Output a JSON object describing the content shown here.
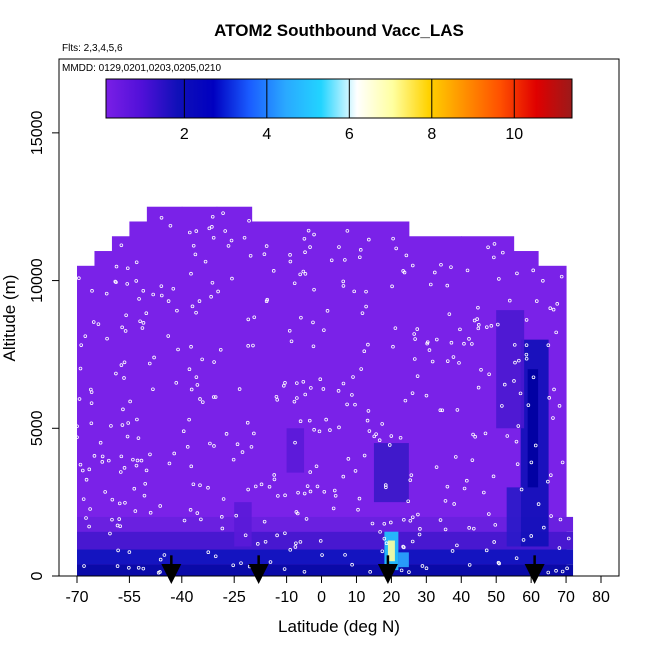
{
  "chart_data": {
    "type": "heatmap",
    "title": "ATOM2 Southbound Vacc_LAS",
    "flights_label": "Flts: 2,3,4,5,6",
    "dates_label": "MMDD: 0129,0201,0203,0205,0210",
    "xlabel": "Latitude (deg N)",
    "ylabel": "Altitude (m)",
    "xlim": [
      -70,
      80
    ],
    "ylim": [
      0,
      17500
    ],
    "x_ticks": [
      -70,
      -55,
      -40,
      -25,
      -10,
      0,
      10,
      20,
      30,
      40,
      50,
      60,
      70,
      80
    ],
    "y_ticks": [
      0,
      5000,
      10000,
      15000
    ],
    "colorbar": {
      "range": [
        0.1,
        11.4
      ],
      "ticks": [
        2,
        4,
        6,
        8,
        10
      ],
      "colors": [
        "#7a1fe6",
        "#5010d8",
        "#1010b8",
        "#0000c0",
        "#1a5cff",
        "#2aa8ff",
        "#22d4ff",
        "#ffffff",
        "#ffffa0",
        "#ffd200",
        "#ff9000",
        "#ff5000",
        "#e00000",
        "#9b1a1a"
      ]
    },
    "field_background_color": "#7a22e8",
    "field_extent_altitude_by_latitude": [
      {
        "x": -70,
        "top": 10500
      },
      {
        "x": -65,
        "top": 11000
      },
      {
        "x": -60,
        "top": 11500
      },
      {
        "x": -55,
        "top": 12000
      },
      {
        "x": -50,
        "top": 12500
      },
      {
        "x": -40,
        "top": 12500
      },
      {
        "x": -30,
        "top": 12500
      },
      {
        "x": -20,
        "top": 12000
      },
      {
        "x": -10,
        "top": 12000
      },
      {
        "x": 0,
        "top": 12000
      },
      {
        "x": 10,
        "top": 12000
      },
      {
        "x": 25,
        "top": 11500
      },
      {
        "x": 40,
        "top": 11500
      },
      {
        "x": 55,
        "top": 11000
      },
      {
        "x": 62,
        "top": 10500
      },
      {
        "x": 70,
        "top": 10500
      }
    ],
    "low_altitude_layers": [
      {
        "x0": -70,
        "x1": 72,
        "y0": 0,
        "y1": 400,
        "color": "#0a0aa8"
      },
      {
        "x0": -70,
        "x1": 72,
        "y0": 400,
        "y1": 900,
        "color": "#1414c0"
      },
      {
        "x0": -70,
        "x1": 72,
        "y0": 900,
        "y1": 1500,
        "color": "#4818d0"
      },
      {
        "x0": -70,
        "x1": 72,
        "y0": 1500,
        "y1": 2000,
        "color": "#6a20e0"
      }
    ],
    "enhanced_regions": [
      {
        "x0": 18,
        "x1": 22,
        "y0": 200,
        "y1": 1500,
        "color": "#22c8ff"
      },
      {
        "x0": 19,
        "x1": 21,
        "y0": 500,
        "y1": 1200,
        "color": "#ffffa0"
      },
      {
        "x0": 22,
        "x1": 25,
        "y0": 300,
        "y1": 800,
        "color": "#2aa8ff"
      },
      {
        "x0": 57,
        "x1": 65,
        "y0": 1000,
        "y1": 8000,
        "color": "#1010b8"
      },
      {
        "x0": 59,
        "x1": 62,
        "y0": 3000,
        "y1": 7000,
        "color": "#0000a0"
      },
      {
        "x0": 15,
        "x1": 25,
        "y0": 2500,
        "y1": 4500,
        "color": "#3a18c8"
      },
      {
        "x0": 53,
        "x1": 57,
        "y0": 1000,
        "y1": 3000,
        "color": "#2a1ac8"
      },
      {
        "x0": -10,
        "x1": -5,
        "y0": 3500,
        "y1": 5000,
        "color": "#5a1ad8"
      },
      {
        "x0": 50,
        "x1": 58,
        "y0": 5000,
        "y1": 9000,
        "color": "#4a18d0"
      },
      {
        "x0": -25,
        "x1": -20,
        "y0": 1000,
        "y1": 2500,
        "color": "#5a1ad8"
      }
    ],
    "sample_points_per_flight_leg": 460,
    "arrows_latitude": [
      -43,
      -18,
      19,
      61
    ]
  }
}
